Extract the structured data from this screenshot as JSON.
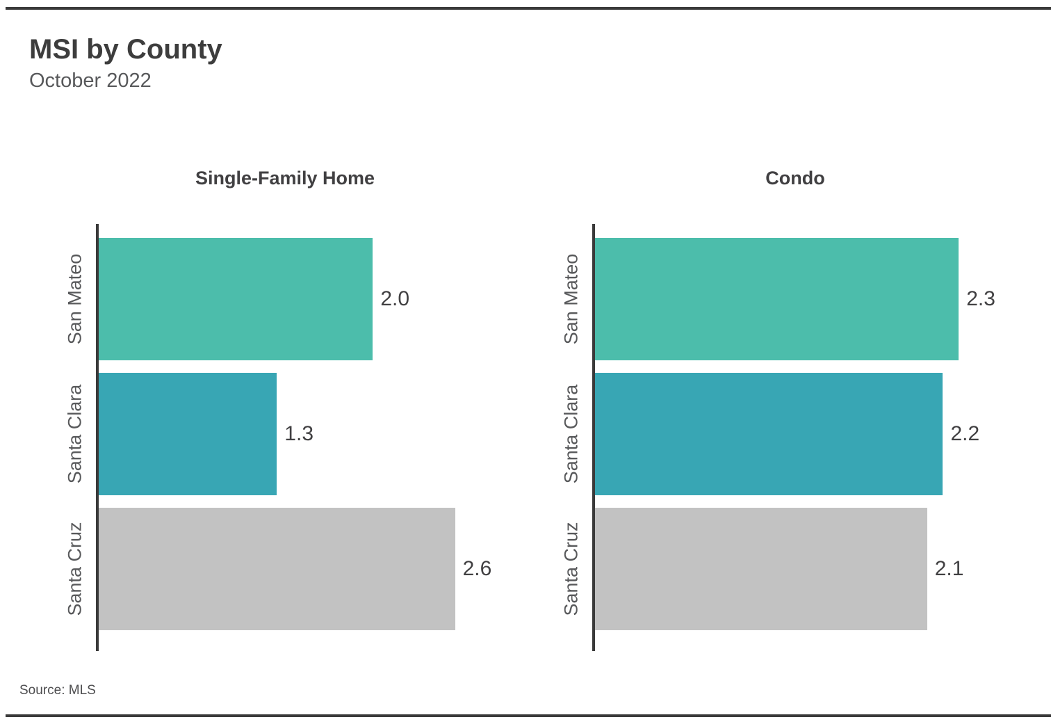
{
  "page": {
    "title": "MSI by County",
    "subtitle": "October 2022",
    "source": "Source:  MLS"
  },
  "colors": {
    "teal_green": "#4cbdab",
    "teal_blue": "#38a6b4",
    "gray": "#c2c2c2",
    "axis": "#3a3a3a",
    "rule": "#3a3a3a",
    "title_text": "#3d3d3d",
    "label_text": "#58595b"
  },
  "chart_data": [
    {
      "type": "bar",
      "orientation": "horizontal",
      "title": "Single-Family Home",
      "categories": [
        "San Mateo",
        "Santa Clara",
        "Santa Cruz"
      ],
      "values": [
        2.0,
        1.3,
        2.6
      ],
      "value_labels": [
        "2.0",
        "1.3",
        "2.6"
      ],
      "bar_colors": [
        "#4cbdab",
        "#38a6b4",
        "#c2c2c2"
      ],
      "xlim": [
        0,
        2.82
      ],
      "grid": false,
      "legend": false,
      "xlabel": "",
      "ylabel": ""
    },
    {
      "type": "bar",
      "orientation": "horizontal",
      "title": "Condo",
      "categories": [
        "San Mateo",
        "Santa Clara",
        "Santa Cruz"
      ],
      "values": [
        2.3,
        2.2,
        2.1
      ],
      "value_labels": [
        "2.3",
        "2.2",
        "2.1"
      ],
      "bar_colors": [
        "#4cbdab",
        "#38a6b4",
        "#c2c2c2"
      ],
      "xlim": [
        0,
        2.62
      ],
      "grid": false,
      "legend": false,
      "xlabel": "",
      "ylabel": ""
    }
  ]
}
